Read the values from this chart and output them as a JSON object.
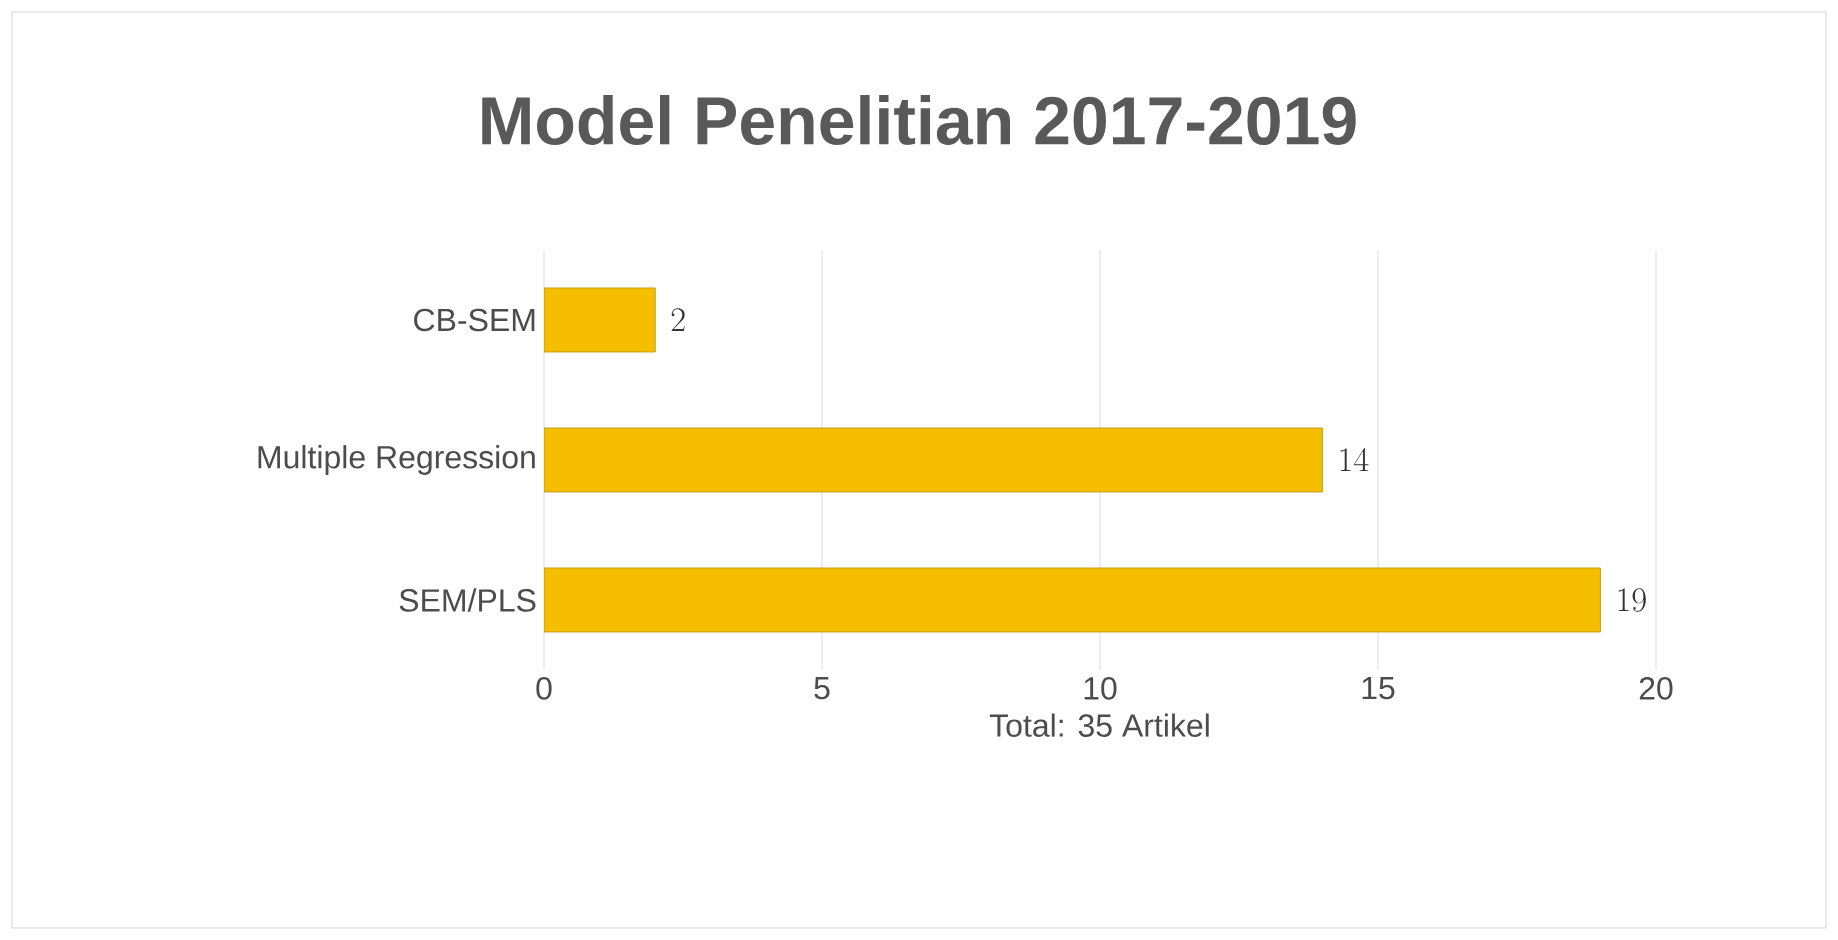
{
  "chart_data": {
    "type": "bar",
    "orientation": "horizontal",
    "title": "Model Penelitian  2017-2019",
    "xlabel": "Total: 35 Artikel",
    "categories": [
      "CB-SEM",
      "Multiple Regression",
      "SEM/PLS"
    ],
    "values": [
      2,
      14,
      19
    ],
    "color": "#f5be00",
    "xlim": [
      0,
      20
    ],
    "xticks": [
      0,
      5,
      10,
      15,
      20
    ],
    "grid": "x",
    "data_labels": true
  }
}
